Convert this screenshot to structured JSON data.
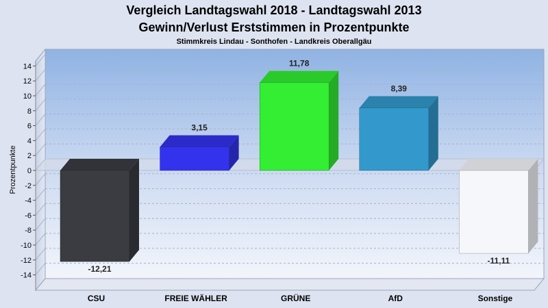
{
  "chart_data": {
    "type": "bar",
    "title": "Vergleich Landtagswahl 2018 - Landtagswahl 2013",
    "subtitle": "Gewinn/Verlust Erststimmen in Prozentpunkte",
    "subsubtitle": "Stimmkreis Lindau - Sonthofen - Landkreis Oberallgäu",
    "ylabel": "Prozentpunkte",
    "xlabel": "",
    "ylim": [
      -15,
      15
    ],
    "yticks": [
      14,
      12,
      10,
      8,
      6,
      4,
      2,
      0,
      -2,
      -4,
      -6,
      -8,
      -10,
      -12,
      -14
    ],
    "categories": [
      "CSU",
      "FREIE WÄHLER",
      "GRÜNE",
      "AfD",
      "Sonstige"
    ],
    "values": [
      -12.21,
      3.15,
      11.78,
      8.39,
      -11.11
    ],
    "value_labels": [
      "-12,21",
      "3,15",
      "11,78",
      "8,39",
      "-11,11"
    ],
    "colors": [
      "#3a3c42",
      "#3333ee",
      "#33ee33",
      "#3399cc",
      "#f6f7fb"
    ],
    "grid": true,
    "legend": "none"
  }
}
